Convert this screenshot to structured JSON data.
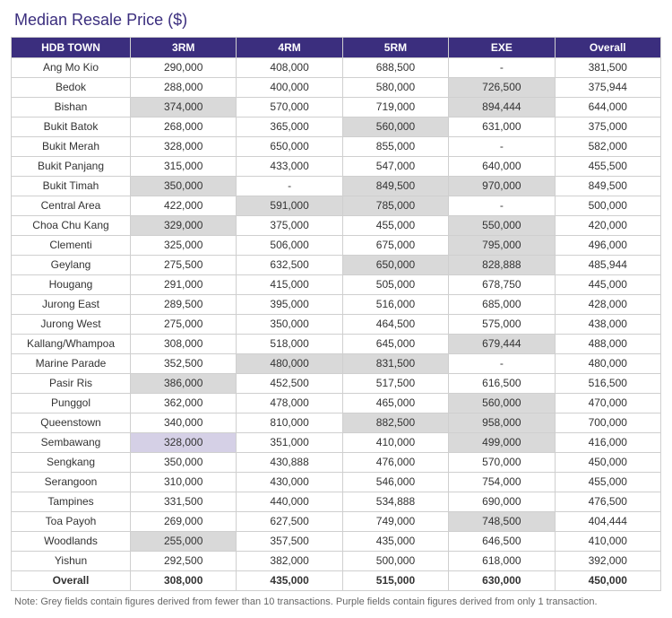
{
  "title": "Median Resale Price ($)",
  "headers": [
    "HDB TOWN",
    "3RM",
    "4RM",
    "5RM",
    "EXE",
    "Overall"
  ],
  "colors": {
    "header_bg": "#3b2e7e",
    "header_fg": "#ffffff",
    "border": "#cfcfcf",
    "grey_highlight": "#d9d9d9",
    "purple_highlight": "#d5d0e6",
    "title_color": "#3b2e7e",
    "note_color": "#666666"
  },
  "note": "Note: Grey fields contain figures derived from fewer than 10 transactions. Purple fields contain figures derived from only 1 transaction.",
  "rows": [
    {
      "town": "Ang Mo Kio",
      "cells": [
        {
          "v": "290,000"
        },
        {
          "v": "408,000"
        },
        {
          "v": "688,500"
        },
        {
          "v": "-"
        },
        {
          "v": "381,500"
        }
      ]
    },
    {
      "town": "Bedok",
      "cells": [
        {
          "v": "288,000"
        },
        {
          "v": "400,000"
        },
        {
          "v": "580,000"
        },
        {
          "v": "726,500",
          "hl": "grey"
        },
        {
          "v": "375,944"
        }
      ]
    },
    {
      "town": "Bishan",
      "cells": [
        {
          "v": "374,000",
          "hl": "grey"
        },
        {
          "v": "570,000"
        },
        {
          "v": "719,000"
        },
        {
          "v": "894,444",
          "hl": "grey"
        },
        {
          "v": "644,000"
        }
      ]
    },
    {
      "town": "Bukit Batok",
      "cells": [
        {
          "v": "268,000"
        },
        {
          "v": "365,000"
        },
        {
          "v": "560,000",
          "hl": "grey"
        },
        {
          "v": "631,000"
        },
        {
          "v": "375,000"
        }
      ]
    },
    {
      "town": "Bukit Merah",
      "cells": [
        {
          "v": "328,000"
        },
        {
          "v": "650,000"
        },
        {
          "v": "855,000"
        },
        {
          "v": "-"
        },
        {
          "v": "582,000"
        }
      ]
    },
    {
      "town": "Bukit Panjang",
      "cells": [
        {
          "v": "315,000"
        },
        {
          "v": "433,000"
        },
        {
          "v": "547,000"
        },
        {
          "v": "640,000"
        },
        {
          "v": "455,500"
        }
      ]
    },
    {
      "town": "Bukit Timah",
      "cells": [
        {
          "v": "350,000",
          "hl": "grey"
        },
        {
          "v": "-"
        },
        {
          "v": "849,500",
          "hl": "grey"
        },
        {
          "v": "970,000",
          "hl": "grey"
        },
        {
          "v": "849,500"
        }
      ]
    },
    {
      "town": "Central Area",
      "cells": [
        {
          "v": "422,000"
        },
        {
          "v": "591,000",
          "hl": "grey"
        },
        {
          "v": "785,000",
          "hl": "grey"
        },
        {
          "v": "-"
        },
        {
          "v": "500,000"
        }
      ]
    },
    {
      "town": "Choa Chu Kang",
      "cells": [
        {
          "v": "329,000",
          "hl": "grey"
        },
        {
          "v": "375,000"
        },
        {
          "v": "455,000"
        },
        {
          "v": "550,000",
          "hl": "grey"
        },
        {
          "v": "420,000"
        }
      ]
    },
    {
      "town": "Clementi",
      "cells": [
        {
          "v": "325,000"
        },
        {
          "v": "506,000"
        },
        {
          "v": "675,000"
        },
        {
          "v": "795,000",
          "hl": "grey"
        },
        {
          "v": "496,000"
        }
      ]
    },
    {
      "town": "Geylang",
      "cells": [
        {
          "v": "275,500"
        },
        {
          "v": "632,500"
        },
        {
          "v": "650,000",
          "hl": "grey"
        },
        {
          "v": "828,888",
          "hl": "grey"
        },
        {
          "v": "485,944"
        }
      ]
    },
    {
      "town": "Hougang",
      "cells": [
        {
          "v": "291,000"
        },
        {
          "v": "415,000"
        },
        {
          "v": "505,000"
        },
        {
          "v": "678,750"
        },
        {
          "v": "445,000"
        }
      ]
    },
    {
      "town": "Jurong East",
      "cells": [
        {
          "v": "289,500"
        },
        {
          "v": "395,000"
        },
        {
          "v": "516,000"
        },
        {
          "v": "685,000"
        },
        {
          "v": "428,000"
        }
      ]
    },
    {
      "town": "Jurong West",
      "cells": [
        {
          "v": "275,000"
        },
        {
          "v": "350,000"
        },
        {
          "v": "464,500"
        },
        {
          "v": "575,000"
        },
        {
          "v": "438,000"
        }
      ]
    },
    {
      "town": "Kallang/Whampoa",
      "cells": [
        {
          "v": "308,000"
        },
        {
          "v": "518,000"
        },
        {
          "v": "645,000"
        },
        {
          "v": "679,444",
          "hl": "grey"
        },
        {
          "v": "488,000"
        }
      ]
    },
    {
      "town": "Marine Parade",
      "cells": [
        {
          "v": "352,500"
        },
        {
          "v": "480,000",
          "hl": "grey"
        },
        {
          "v": "831,500",
          "hl": "grey"
        },
        {
          "v": "-"
        },
        {
          "v": "480,000"
        }
      ]
    },
    {
      "town": "Pasir Ris",
      "cells": [
        {
          "v": "386,000",
          "hl": "grey"
        },
        {
          "v": "452,500"
        },
        {
          "v": "517,500"
        },
        {
          "v": "616,500"
        },
        {
          "v": "516,500"
        }
      ]
    },
    {
      "town": "Punggol",
      "cells": [
        {
          "v": "362,000"
        },
        {
          "v": "478,000"
        },
        {
          "v": "465,000"
        },
        {
          "v": "560,000",
          "hl": "grey"
        },
        {
          "v": "470,000"
        }
      ]
    },
    {
      "town": "Queenstown",
      "cells": [
        {
          "v": "340,000"
        },
        {
          "v": "810,000"
        },
        {
          "v": "882,500",
          "hl": "grey"
        },
        {
          "v": "958,000",
          "hl": "grey"
        },
        {
          "v": "700,000"
        }
      ]
    },
    {
      "town": "Sembawang",
      "cells": [
        {
          "v": "328,000",
          "hl": "purple"
        },
        {
          "v": "351,000"
        },
        {
          "v": "410,000"
        },
        {
          "v": "499,000",
          "hl": "grey"
        },
        {
          "v": "416,000"
        }
      ]
    },
    {
      "town": "Sengkang",
      "cells": [
        {
          "v": "350,000"
        },
        {
          "v": "430,888"
        },
        {
          "v": "476,000"
        },
        {
          "v": "570,000"
        },
        {
          "v": "450,000"
        }
      ]
    },
    {
      "town": "Serangoon",
      "cells": [
        {
          "v": "310,000"
        },
        {
          "v": "430,000"
        },
        {
          "v": "546,000"
        },
        {
          "v": "754,000"
        },
        {
          "v": "455,000"
        }
      ]
    },
    {
      "town": "Tampines",
      "cells": [
        {
          "v": "331,500"
        },
        {
          "v": "440,000"
        },
        {
          "v": "534,888"
        },
        {
          "v": "690,000"
        },
        {
          "v": "476,500"
        }
      ]
    },
    {
      "town": "Toa Payoh",
      "cells": [
        {
          "v": "269,000"
        },
        {
          "v": "627,500"
        },
        {
          "v": "749,000"
        },
        {
          "v": "748,500",
          "hl": "grey"
        },
        {
          "v": "404,444"
        }
      ]
    },
    {
      "town": "Woodlands",
      "cells": [
        {
          "v": "255,000",
          "hl": "grey"
        },
        {
          "v": "357,500"
        },
        {
          "v": "435,000"
        },
        {
          "v": "646,500"
        },
        {
          "v": "410,000"
        }
      ]
    },
    {
      "town": "Yishun",
      "cells": [
        {
          "v": "292,500"
        },
        {
          "v": "382,000"
        },
        {
          "v": "500,000"
        },
        {
          "v": "618,000"
        },
        {
          "v": "392,000"
        }
      ]
    }
  ],
  "overall": {
    "town": "Overall",
    "cells": [
      {
        "v": "308,000"
      },
      {
        "v": "435,000"
      },
      {
        "v": "515,000"
      },
      {
        "v": "630,000"
      },
      {
        "v": "450,000"
      }
    ]
  }
}
